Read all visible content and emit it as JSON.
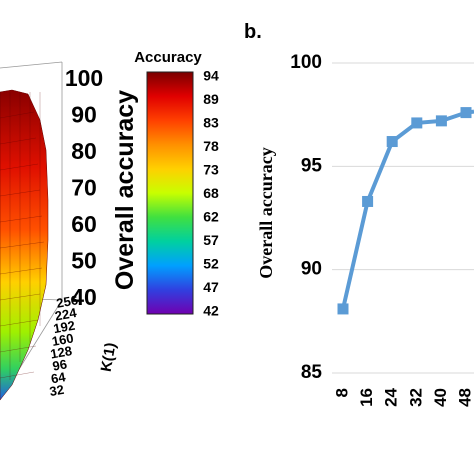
{
  "chart_data": [
    {
      "type": "surface",
      "zlabel": "Overall accuracy",
      "z_ticks": [
        "100",
        "90",
        "80",
        "70",
        "60",
        "50",
        "40"
      ],
      "y_axis_label": "K(1)",
      "y_ticks": [
        "256",
        "224",
        "192",
        "160",
        "128",
        "96",
        "64",
        "32"
      ],
      "colorbar": {
        "title": "Accuracy",
        "ticks": [
          "94",
          "89",
          "83",
          "78",
          "73",
          "68",
          "62",
          "57",
          "52",
          "47",
          "42"
        ],
        "range": [
          42,
          94
        ],
        "colors": [
          "#7a0000",
          "#e00000",
          "#ff4000",
          "#ff9000",
          "#ffd000",
          "#c8ff00",
          "#40e040",
          "#00d0a0",
          "#00a0ff",
          "#3040e0",
          "#7000b0"
        ]
      }
    },
    {
      "type": "line",
      "panel_label": "b.",
      "ylabel": "Overall accuracy",
      "ylim": [
        85,
        100
      ],
      "y_ticks": [
        "100",
        "95",
        "90",
        "85"
      ],
      "categories": [
        "8",
        "16",
        "24",
        "32",
        "40",
        "48"
      ],
      "values": [
        88.1,
        93.3,
        96.2,
        97.1,
        97.2,
        97.6
      ],
      "color": "#5b9bd5"
    }
  ]
}
